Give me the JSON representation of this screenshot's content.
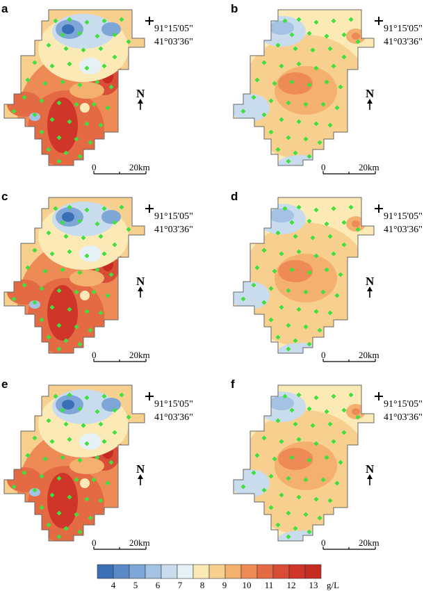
{
  "panels": [
    {
      "label": "a",
      "variant": "A",
      "coord_lon": "91°15'05\"",
      "coord_lat": "41°03'36\"",
      "north": "N",
      "scale_zero": "0",
      "scale_end": "20km"
    },
    {
      "label": "b",
      "variant": "B",
      "coord_lon": "91°15'05\"",
      "coord_lat": "41°03'36\"",
      "north": "N",
      "scale_zero": "0",
      "scale_end": "20km"
    },
    {
      "label": "c",
      "variant": "A",
      "coord_lon": "91°15'05\"",
      "coord_lat": "41°03'36\"",
      "north": "N",
      "scale_zero": "0",
      "scale_end": "20km"
    },
    {
      "label": "d",
      "variant": "B",
      "coord_lon": "91°15'05\"",
      "coord_lat": "41°03'36\"",
      "north": "N",
      "scale_zero": "0",
      "scale_end": "20km"
    },
    {
      "label": "e",
      "variant": "A",
      "coord_lon": "91°15'05\"",
      "coord_lat": "41°03'36\"",
      "north": "N",
      "scale_zero": "0",
      "scale_end": "20km"
    },
    {
      "label": "f",
      "variant": "B",
      "coord_lon": "91°15'05\"",
      "coord_lat": "41°03'36\"",
      "north": "N",
      "scale_zero": "0",
      "scale_end": "20km"
    }
  ],
  "colorbar": {
    "ticks": [
      "4",
      "5",
      "6",
      "7",
      "8",
      "9",
      "10",
      "11",
      "12",
      "13"
    ],
    "unit": "g/L",
    "colors": [
      "#3a6fb5",
      "#5a8ac6",
      "#7ea6d6",
      "#a4c2e3",
      "#c9dcee",
      "#e6f1f6",
      "#fbe9b6",
      "#f7cf8e",
      "#f4b06e",
      "#ee8a55",
      "#e46a44",
      "#d94d36",
      "#cf3529",
      "#c62b22"
    ]
  },
  "style": {
    "sample_point_color": "#3ee03e",
    "outline_color": "#666666"
  }
}
